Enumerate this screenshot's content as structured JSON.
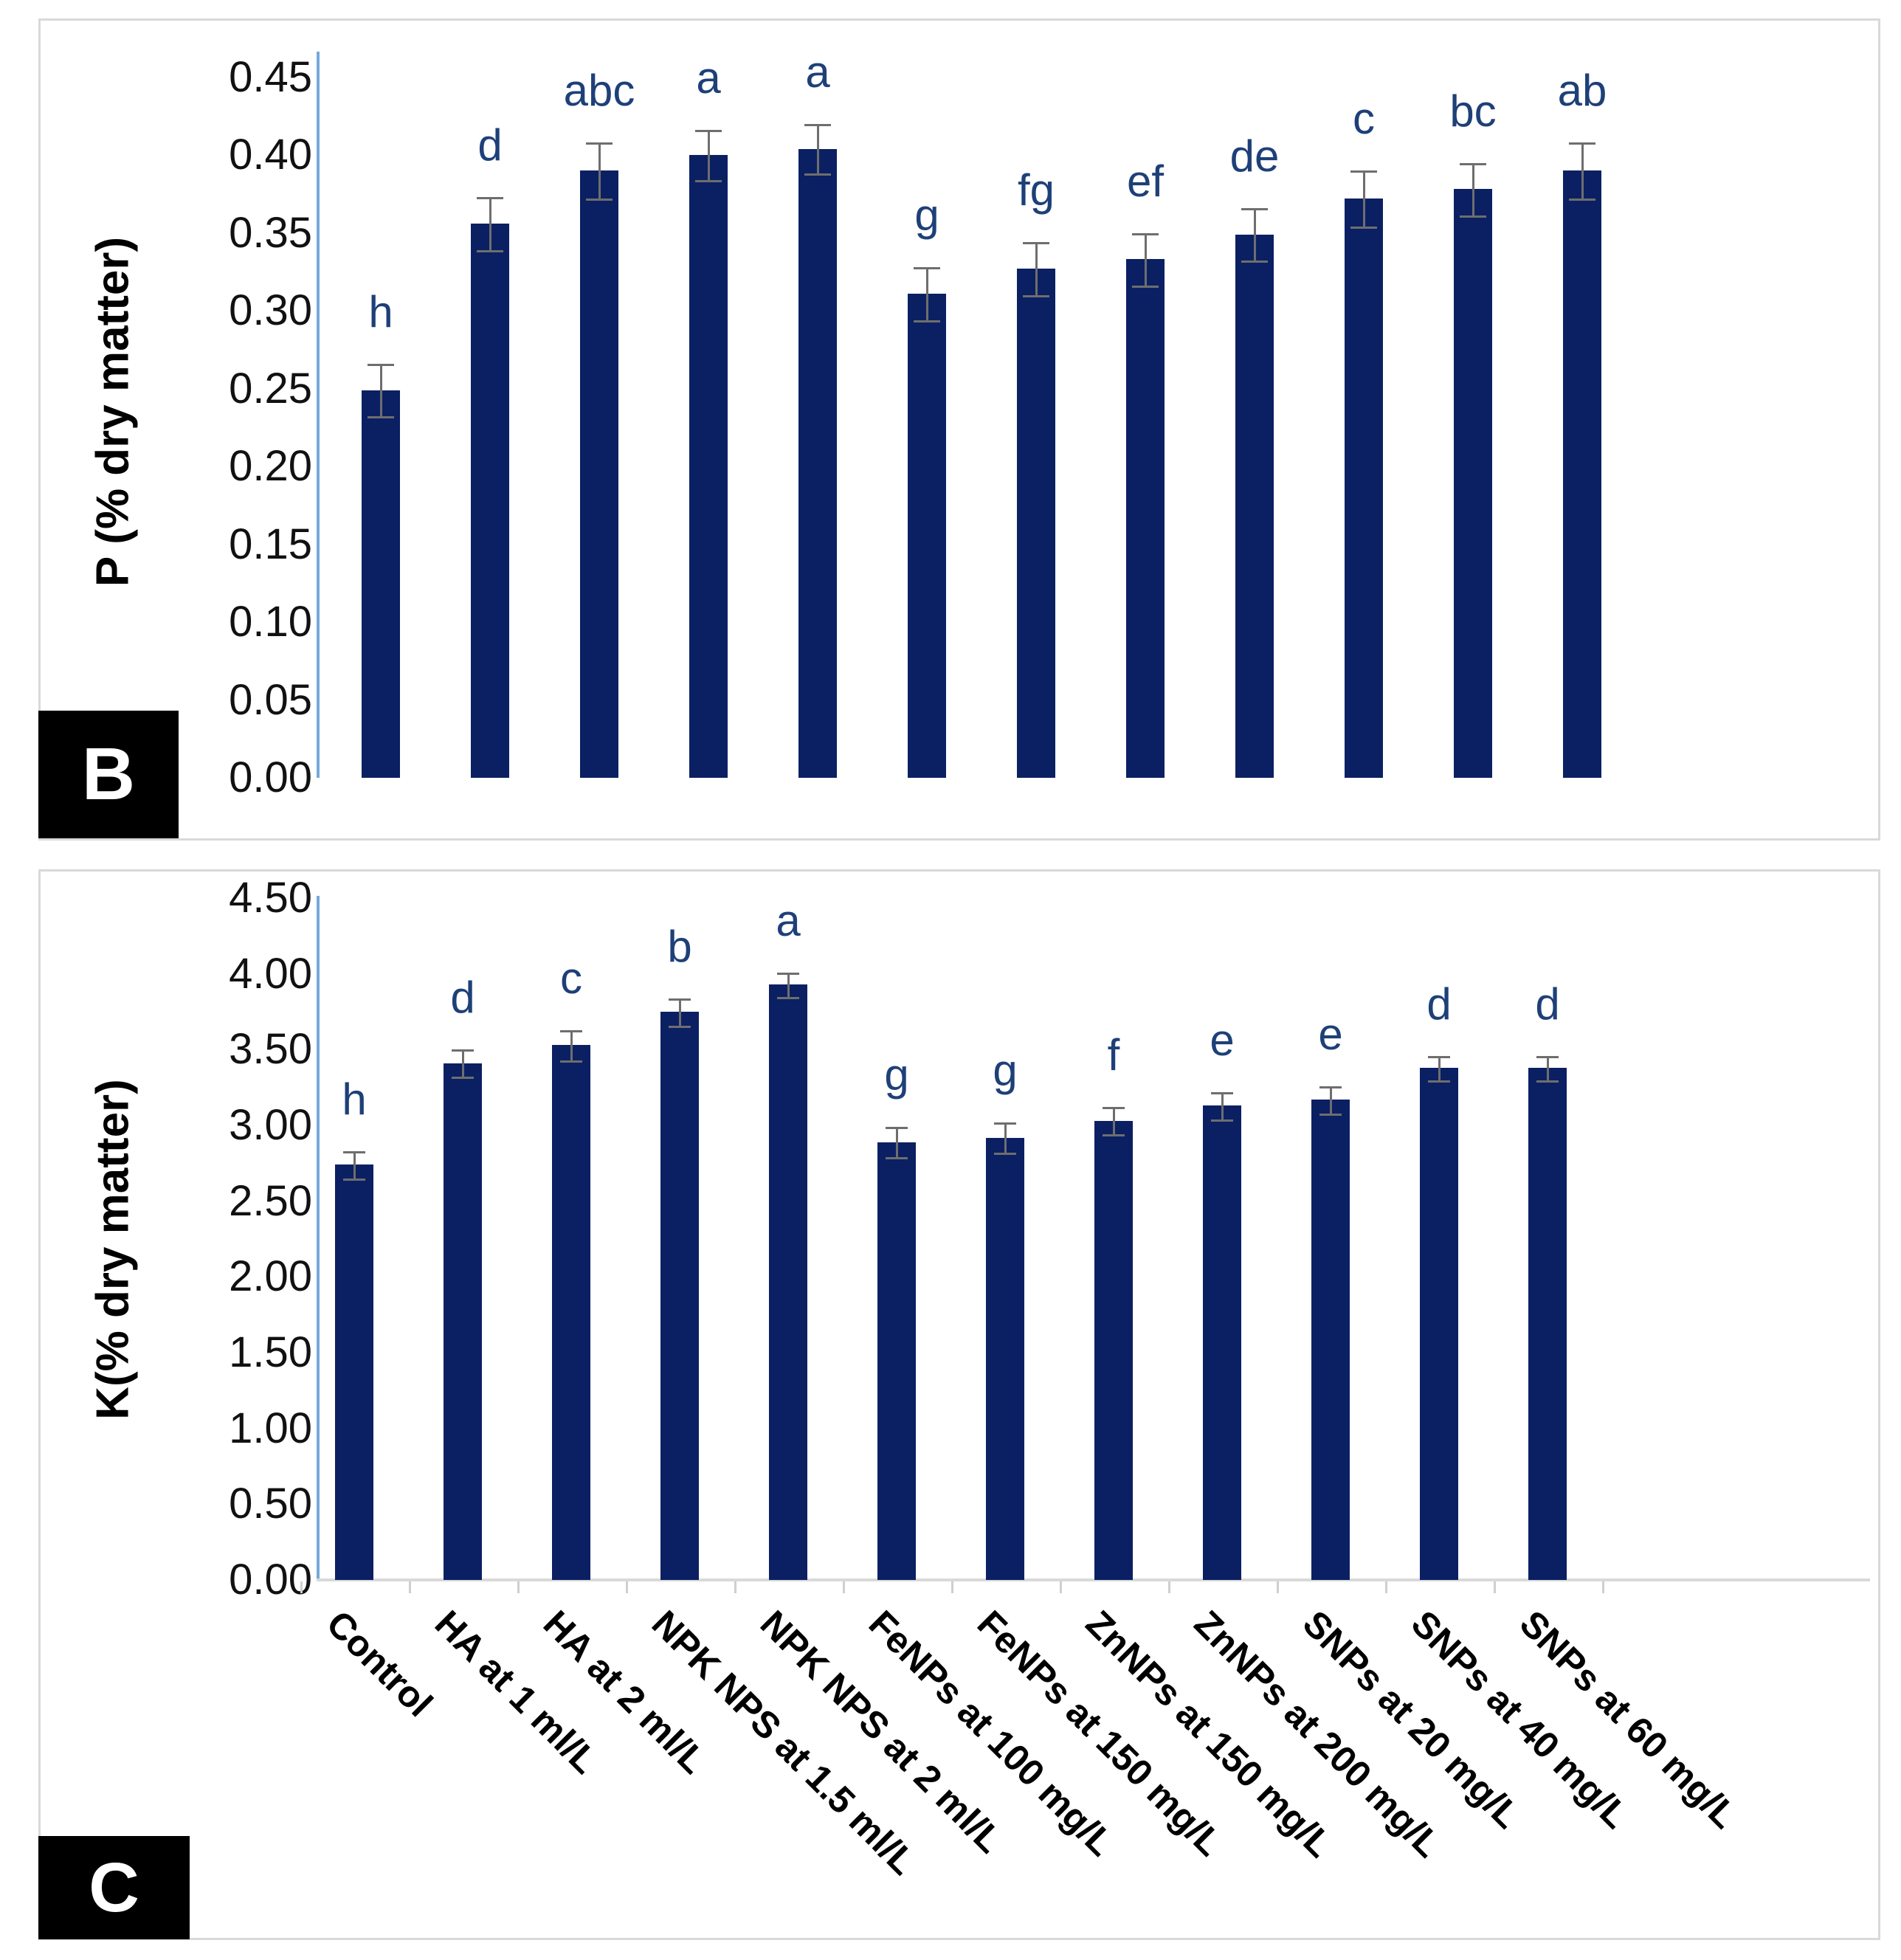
{
  "figure": {
    "description": "Two-panel bar chart figure of nutrient content under different treatments",
    "colors": {
      "bar_fill": "#0b2063",
      "sig_letter": "#1e4078",
      "y_axis_line": "#74a9dc",
      "x_axis_line": "#d9d9d9",
      "error_bar": "#6e6e6e",
      "panel_border": "#d9d9d9",
      "panel_label_bg": "#000000",
      "panel_label_text": "#ffffff",
      "tick_text": "#111111"
    }
  },
  "panels": [
    {
      "id": "B",
      "label": "B",
      "ylabel": "P (% dry matter)"
    },
    {
      "id": "C",
      "label": "C",
      "ylabel": "K(% dry matter)"
    }
  ],
  "chart_data": [
    {
      "type": "bar",
      "panel": "B",
      "title": "",
      "xlabel": "",
      "ylabel": "P (% dry matter)",
      "ylim": [
        0,
        0.45
      ],
      "ytick_step": 0.05,
      "grid": false,
      "legend": "none",
      "show_x_labels": false,
      "yticks": [
        "0.45",
        "0.40",
        "0.35",
        "0.30",
        "0.25",
        "0.20",
        "0.15",
        "0.10",
        "0.05",
        "0.00"
      ],
      "categories": [
        "Control",
        "HA at 1 ml/L",
        "HA at 2 ml/L",
        "NPK NPS at 1.5 ml/L",
        "NPK NPS at 2 ml/L",
        "FeNPs at 100 mg/L",
        "FeNPs at 150 mg/L",
        "ZnNPs at 150 mg/L",
        "ZnNPs at 200 mg/L",
        "SNPs at 20 mg/L",
        "SNPs at 40 mg/L",
        "SNPs at 60 mg/L"
      ],
      "values": [
        0.249,
        0.356,
        0.39,
        0.4,
        0.404,
        0.311,
        0.327,
        0.333,
        0.349,
        0.372,
        0.378,
        0.39
      ],
      "errors": [
        0.017,
        0.017,
        0.018,
        0.016,
        0.016,
        0.017,
        0.017,
        0.017,
        0.017,
        0.018,
        0.017,
        0.018
      ],
      "sig_letters": [
        "h",
        "d",
        "abc",
        "a",
        "a",
        "g",
        "fg",
        "ef",
        "de",
        "c",
        "bc",
        "ab"
      ]
    },
    {
      "type": "bar",
      "panel": "C",
      "title": "",
      "xlabel": "",
      "ylabel": "K(% dry matter)",
      "ylim": [
        0,
        4.5
      ],
      "ytick_step": 0.5,
      "grid": false,
      "legend": "none",
      "show_x_labels": true,
      "yticks": [
        "4.50",
        "4.00",
        "3.50",
        "3.00",
        "2.50",
        "2.00",
        "1.50",
        "1.00",
        "0.50",
        "0.00"
      ],
      "categories": [
        "Control",
        "HA at 1 ml/L",
        "HA at 2 ml/L",
        "NPK NPS at 1.5 ml/L",
        "NPK NPS at 2 ml/L",
        "FeNPs at 100 mg/L",
        "FeNPs at 150 mg/L",
        "ZnNPs at 150 mg/L",
        "ZnNPs at 200 mg/L",
        "SNPs at 20 mg/L",
        "SNPs at 40 mg/L",
        "SNPs at 60 mg/L"
      ],
      "values": [
        2.74,
        3.41,
        3.53,
        3.75,
        3.93,
        2.89,
        2.92,
        3.03,
        3.13,
        3.17,
        3.38,
        3.38
      ],
      "errors": [
        0.09,
        0.09,
        0.1,
        0.09,
        0.08,
        0.1,
        0.1,
        0.09,
        0.09,
        0.09,
        0.08,
        0.08
      ],
      "sig_letters": [
        "h",
        "d",
        "c",
        "b",
        "a",
        "g",
        "g",
        "f",
        "e",
        "e",
        "d",
        "d"
      ]
    }
  ]
}
